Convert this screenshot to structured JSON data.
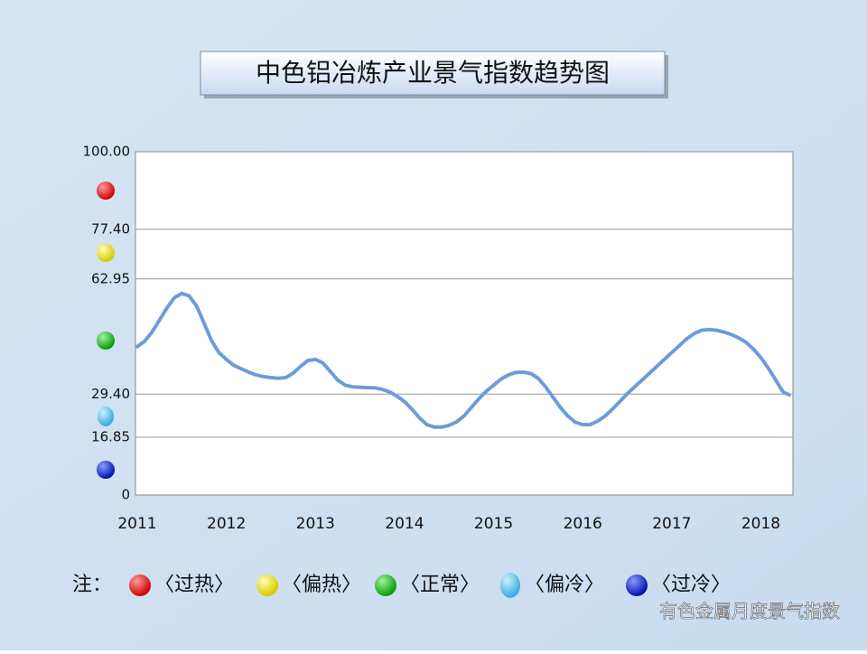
{
  "chart_data": {
    "type": "line",
    "title": "中色铝冶炼产业景气指数趋势图",
    "categories": [
      "2011",
      null,
      null,
      null,
      null,
      null,
      null,
      null,
      null,
      null,
      null,
      null,
      "2012",
      null,
      null,
      null,
      null,
      null,
      null,
      null,
      null,
      null,
      null,
      null,
      "2013",
      null,
      null,
      null,
      null,
      null,
      null,
      null,
      null,
      null,
      null,
      null,
      "2014",
      null,
      null,
      null,
      null,
      null,
      null,
      null,
      null,
      null,
      null,
      null,
      "2015",
      null,
      null,
      null,
      null,
      null,
      null,
      null,
      null,
      null,
      null,
      null,
      "2016",
      null,
      null,
      null,
      null,
      null,
      null,
      null,
      null,
      null,
      null,
      null,
      "2017",
      null,
      null,
      null,
      null,
      null,
      null,
      null,
      null,
      null,
      null,
      null,
      "2018",
      null,
      null,
      null,
      null
    ],
    "values": [
      43.2,
      44.8,
      47.5,
      51,
      54.5,
      57.5,
      58.7,
      58,
      55,
      50,
      45,
      41.5,
      39.5,
      37.8,
      36.8,
      35.8,
      35,
      34.5,
      34.2,
      34,
      34.2,
      35.5,
      37.5,
      39.2,
      39.5,
      38.5,
      36,
      33.5,
      32,
      31.5,
      31.4,
      31.3,
      31.2,
      30.8,
      30,
      28.8,
      27.2,
      25,
      22.5,
      20.5,
      19.8,
      19.8,
      20.3,
      21.3,
      23,
      25.5,
      28,
      30.2,
      32,
      33.8,
      35,
      35.7,
      35.8,
      35.4,
      34,
      31.5,
      28.5,
      25.5,
      23,
      21.2,
      20.5,
      20.5,
      21.5,
      23,
      25,
      27.2,
      29.5,
      31.5,
      33.5,
      35.5,
      37.5,
      39.5,
      41.5,
      43.5,
      45.5,
      47,
      48,
      48.2,
      48,
      47.5,
      46.8,
      45.8,
      44.5,
      42.5,
      40,
      37,
      33.5,
      30,
      29
    ],
    "color": "#6b9bd8",
    "ylim": [
      0,
      100
    ],
    "yticks": [
      0,
      16.85,
      {
        "value": 29.4,
        "label": "29.40"
      },
      62.95,
      {
        "value": 77.4,
        "label": "77.40"
      },
      {
        "value": 100,
        "label": "100.00"
      }
    ],
    "grid": true,
    "legend": {
      "note": "注：",
      "items": [
        "〈过热〉",
        "〈偏热〉",
        "〈正常〉",
        "〈偏冷〉",
        "〈过冷〉"
      ]
    }
  },
  "watermark": "有色金属月度景气指数"
}
